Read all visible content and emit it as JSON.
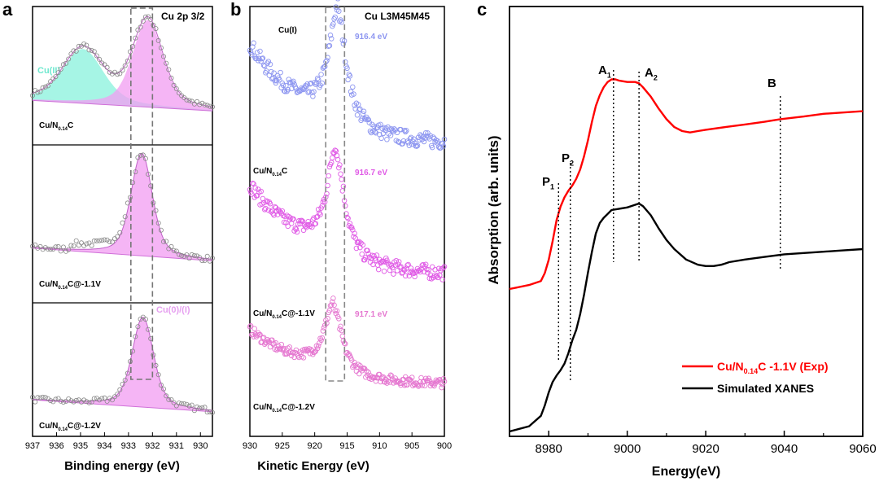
{
  "chart_data": [
    {
      "panel": "a",
      "type": "line",
      "title": "Cu 2p 3/2",
      "xlabel": "Binding energy (eV)",
      "ylabel": "",
      "xlim": [
        937,
        929.5
      ],
      "x_ticks": [
        "937",
        "936",
        "935",
        "934",
        "933",
        "932",
        "931",
        "930"
      ],
      "x_tick_values": [
        937,
        936,
        935,
        934,
        933,
        932,
        931,
        930
      ],
      "dashed_box_x": [
        932.9,
        932.0
      ],
      "annotations": {
        "cu2": "Cu(II)",
        "cu01": "Cu(0)/(I)"
      },
      "series": [
        {
          "name": "Cu/N0.14C",
          "label_main": "Cu/N",
          "label_sub": "0.14",
          "label_tail": "C",
          "components": [
            {
              "name": "Cu(II)",
              "center": 934.9,
              "height": 0.58,
              "width": 1.15,
              "color": "#88f2dc"
            },
            {
              "name": "Cu(I)",
              "center": 932.2,
              "height": 0.93,
              "width": 0.85,
              "color": "#f19cf1"
            }
          ]
        },
        {
          "name": "Cu/N0.14C@-1.1V",
          "label_main": "Cu/N",
          "label_sub": "0.14",
          "label_tail": "C@-1.1V",
          "components": [
            {
              "name": "Cu(I)",
              "center": 932.45,
              "height": 0.9,
              "width": 0.6,
              "color": "#f19cf1"
            }
          ]
        },
        {
          "name": "Cu/N0.14C@-1.2V",
          "label_main": "Cu/N",
          "label_sub": "0.14",
          "label_tail": "C@-1.2V",
          "components": [
            {
              "name": "Cu(0)/(I)",
              "center": 932.4,
              "height": 0.85,
              "width": 0.6,
              "color": "#f19cf1"
            }
          ]
        }
      ]
    },
    {
      "panel": "b",
      "type": "scatter",
      "title": "Cu L3M45M45",
      "xlabel": "Kinetic Energy (eV)",
      "xlim": [
        930,
        900
      ],
      "x_ticks": [
        "930",
        "925",
        "920",
        "915",
        "910",
        "905",
        "900"
      ],
      "x_tick_values": [
        930,
        925,
        920,
        915,
        910,
        905,
        900
      ],
      "dashed_box_x": [
        918.3,
        915.4
      ],
      "annotations": {
        "cu1": "Cu(I)"
      },
      "series": [
        {
          "name": "Cu/N0.14C",
          "label_main": "Cu/N",
          "label_sub": "0.14",
          "label_tail": "C",
          "peak_label": "916.4 eV",
          "peak": 916.4,
          "color": "#8c95f0"
        },
        {
          "name": "Cu/N0.14C@-1.1V",
          "label_main": "Cu/N",
          "label_sub": "0.14",
          "label_tail": "C@-1.1V",
          "peak_label": "916.7 eV",
          "peak": 916.7,
          "color": "#e05be6"
        },
        {
          "name": "Cu/N0.14C@-1.2V",
          "label_main": "Cu/N",
          "label_sub": "0.14",
          "label_tail": "C@-1.2V",
          "peak_label": "917.1 eV",
          "peak": 917.1,
          "color": "#e577d0"
        }
      ]
    },
    {
      "panel": "c",
      "type": "line",
      "xlabel": "Energy(eV)",
      "ylabel": "Absorption (arb. units)",
      "xlim": [
        8970,
        9060
      ],
      "x_ticks": [
        "8980",
        "9000",
        "9020",
        "9040",
        "9060"
      ],
      "x_tick_values": [
        8980,
        9000,
        9020,
        9040,
        9060
      ],
      "feature_lines": [
        {
          "name": "P1",
          "main": "P",
          "sub": "1",
          "x": 8982.5
        },
        {
          "name": "P2",
          "main": "P",
          "sub": "2",
          "x": 8985.5
        },
        {
          "name": "A1",
          "main": "A",
          "sub": "1",
          "x": 8996.5
        },
        {
          "name": "A2",
          "main": "A",
          "sub": "2",
          "x": 9003
        },
        {
          "name": "B",
          "main": "B",
          "sub": "",
          "x": 9039
        }
      ],
      "series": [
        {
          "name": "Cu/N0.14C -1.1V (Exp)",
          "legend_main": "Cu/N",
          "legend_sub": "0.14",
          "legend_tail": "C -1.1V (Exp)",
          "color": "#ff0000",
          "x": [
            8970,
            8975,
            8978,
            8979,
            8980,
            8981,
            8982,
            8983,
            8984,
            8985,
            8986,
            8987,
            8988,
            8989,
            8990,
            8991,
            8992,
            8993,
            8994,
            8995,
            8996,
            8997,
            8998,
            9000,
            9002,
            9003,
            9004,
            9006,
            9008,
            9010,
            9012,
            9014,
            9016,
            9018,
            9020,
            9025,
            9030,
            9035,
            9039,
            9045,
            9050,
            9055,
            9060
          ],
          "y": [
            0.0,
            0.03,
            0.06,
            0.12,
            0.22,
            0.36,
            0.52,
            0.62,
            0.69,
            0.74,
            0.78,
            0.83,
            0.9,
            1.0,
            1.12,
            1.26,
            1.38,
            1.46,
            1.52,
            1.56,
            1.58,
            1.58,
            1.57,
            1.56,
            1.56,
            1.55,
            1.52,
            1.45,
            1.36,
            1.28,
            1.22,
            1.19,
            1.18,
            1.19,
            1.2,
            1.22,
            1.24,
            1.26,
            1.28,
            1.3,
            1.32,
            1.33,
            1.34
          ]
        },
        {
          "name": "Simulated XANES",
          "legend_main": "Simulated XANES",
          "legend_sub": "",
          "legend_tail": "",
          "color": "#000000",
          "x": [
            8970,
            8975,
            8978,
            8979,
            8980,
            8981,
            8982,
            8983,
            8984,
            8985,
            8986,
            8987,
            8988,
            8989,
            8990,
            8991,
            8992,
            8993,
            8994,
            8995,
            8996,
            8998,
            9000,
            9002,
            9003,
            9004,
            9006,
            9008,
            9010,
            9012,
            9015,
            9018,
            9020,
            9022,
            9024,
            9026,
            9030,
            9035,
            9040,
            9045,
            9050,
            9055,
            9060
          ],
          "y": [
            -1.1,
            -1.06,
            -0.98,
            -0.9,
            -0.8,
            -0.72,
            -0.67,
            -0.63,
            -0.58,
            -0.5,
            -0.4,
            -0.32,
            -0.2,
            -0.05,
            0.12,
            0.28,
            0.42,
            0.5,
            0.54,
            0.57,
            0.6,
            0.61,
            0.62,
            0.64,
            0.65,
            0.63,
            0.56,
            0.46,
            0.37,
            0.3,
            0.22,
            0.18,
            0.17,
            0.17,
            0.18,
            0.2,
            0.22,
            0.24,
            0.26,
            0.27,
            0.28,
            0.29,
            0.3
          ]
        }
      ]
    }
  ],
  "panel_labels": {
    "a": "a",
    "b": "b",
    "c": "c"
  }
}
